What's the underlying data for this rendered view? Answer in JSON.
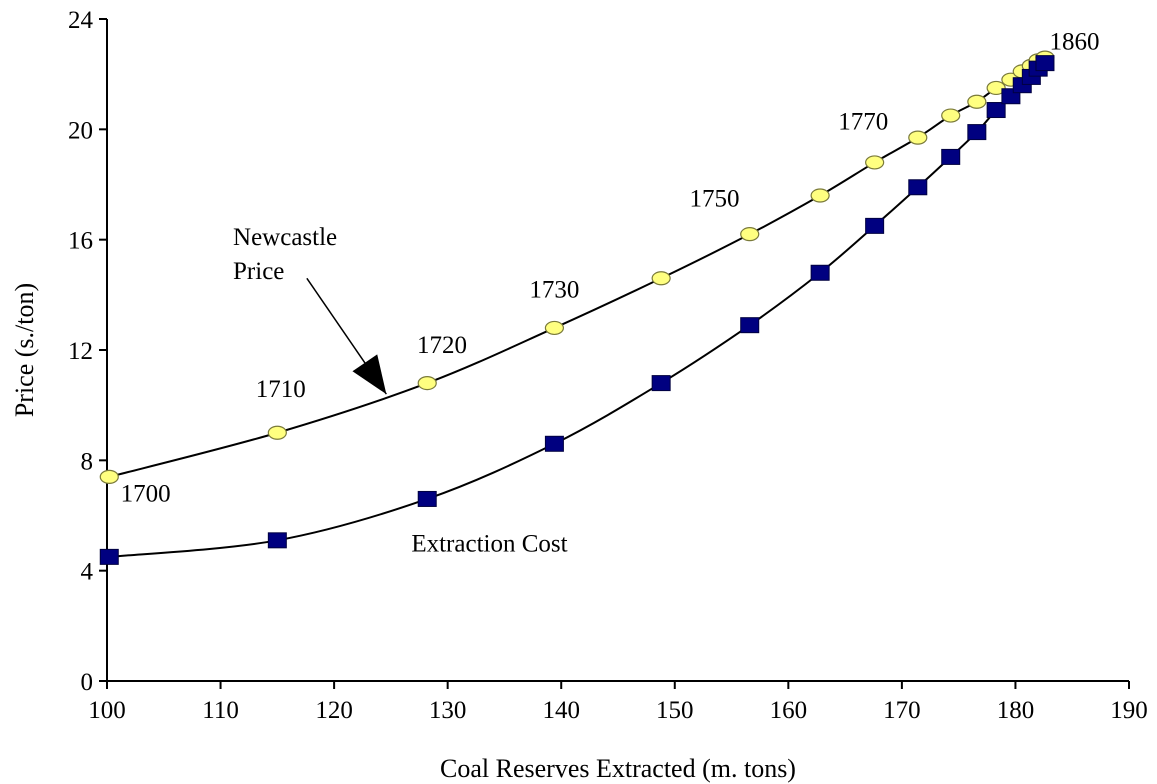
{
  "chart_data": {
    "type": "scatter",
    "title": "",
    "xlabel": "Coal Reserves Extracted (m. tons)",
    "ylabel": "Price (s./ton)",
    "xlim": [
      100,
      190
    ],
    "ylim": [
      0,
      24
    ],
    "x_ticks": [
      "100",
      "110",
      "120",
      "130",
      "140",
      "150",
      "160",
      "170",
      "180",
      "190"
    ],
    "y_ticks": [
      "0",
      "4",
      "8",
      "12",
      "16",
      "20",
      "24"
    ],
    "grid": false,
    "series": [
      {
        "name": "Newcastle Price",
        "marker": "circle",
        "color": "#ffff80",
        "points": [
          {
            "x": 100.2,
            "y": 7.4
          },
          {
            "x": 115.0,
            "y": 9.0
          },
          {
            "x": 128.2,
            "y": 10.8
          },
          {
            "x": 139.4,
            "y": 12.8
          },
          {
            "x": 148.8,
            "y": 14.6
          },
          {
            "x": 156.6,
            "y": 16.2
          },
          {
            "x": 162.8,
            "y": 17.6
          },
          {
            "x": 167.6,
            "y": 18.8
          },
          {
            "x": 171.4,
            "y": 19.7
          },
          {
            "x": 174.3,
            "y": 20.5
          },
          {
            "x": 176.6,
            "y": 21.0
          },
          {
            "x": 178.3,
            "y": 21.5
          },
          {
            "x": 179.6,
            "y": 21.8
          },
          {
            "x": 180.6,
            "y": 22.1
          },
          {
            "x": 181.4,
            "y": 22.3
          },
          {
            "x": 182.0,
            "y": 22.5
          },
          {
            "x": 182.6,
            "y": 22.6
          }
        ]
      },
      {
        "name": "Extraction Cost",
        "marker": "square",
        "color": "#000080",
        "points": [
          {
            "x": 100.2,
            "y": 4.5
          },
          {
            "x": 115.0,
            "y": 5.1
          },
          {
            "x": 128.2,
            "y": 6.6
          },
          {
            "x": 139.4,
            "y": 8.6
          },
          {
            "x": 148.8,
            "y": 10.8
          },
          {
            "x": 156.6,
            "y": 12.9
          },
          {
            "x": 162.8,
            "y": 14.8
          },
          {
            "x": 167.6,
            "y": 16.5
          },
          {
            "x": 171.4,
            "y": 17.9
          },
          {
            "x": 174.3,
            "y": 19.0
          },
          {
            "x": 176.6,
            "y": 19.9
          },
          {
            "x": 178.3,
            "y": 20.7
          },
          {
            "x": 179.6,
            "y": 21.2
          },
          {
            "x": 180.6,
            "y": 21.6
          },
          {
            "x": 181.4,
            "y": 21.9
          },
          {
            "x": 182.0,
            "y": 22.2
          },
          {
            "x": 182.6,
            "y": 22.4
          }
        ]
      }
    ],
    "annotations": [
      {
        "text": "1700",
        "x": 101.2,
        "y": 6.5
      },
      {
        "text": "1710",
        "x": 113.1,
        "y": 10.3
      },
      {
        "text": "1720",
        "x": 127.3,
        "y": 11.9
      },
      {
        "text": "1730",
        "x": 137.2,
        "y": 13.9
      },
      {
        "text": "1750",
        "x": 151.3,
        "y": 17.2
      },
      {
        "text": "1770",
        "x": 164.4,
        "y": 20.0
      },
      {
        "text": "1860",
        "x": 183.0,
        "y": 22.9
      },
      {
        "text": "Extraction Cost",
        "x": 126.8,
        "y": 4.7
      }
    ],
    "callout": {
      "lines": [
        "Newcastle",
        "Price"
      ],
      "text_x": 111.1,
      "text_y": 15.8,
      "line_from": {
        "x": 117.6,
        "y": 14.6
      },
      "arrow_tip": {
        "x": 124.6,
        "y": 10.4
      }
    }
  }
}
